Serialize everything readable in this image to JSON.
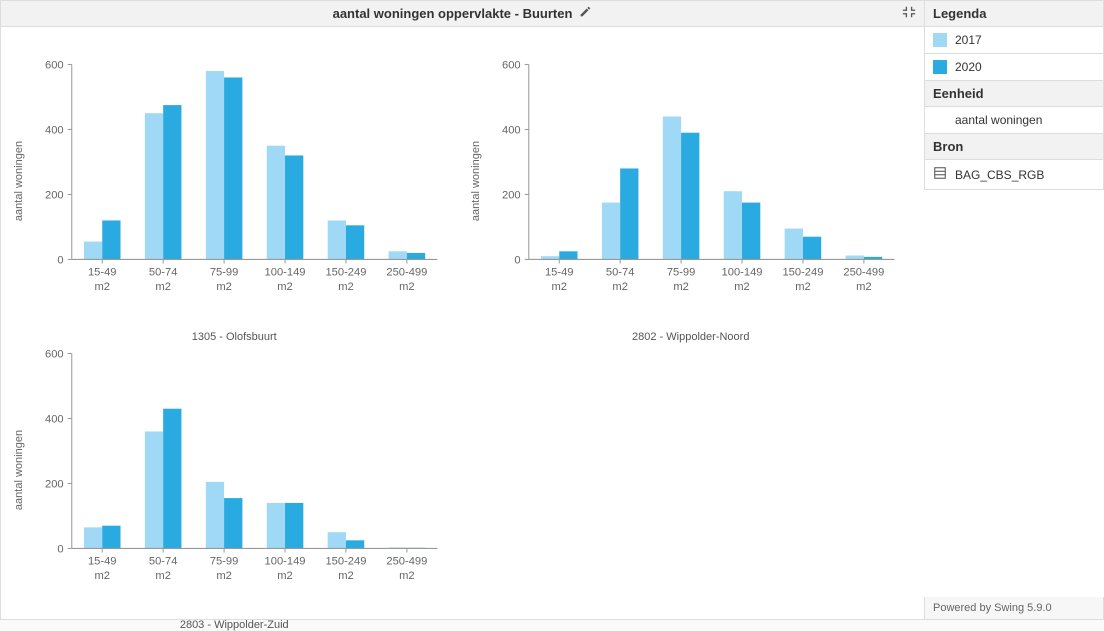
{
  "title": "aantal woningen oppervlakte - Buurten",
  "legend": {
    "header": "Legenda",
    "items": [
      {
        "label": "2017",
        "color": "#9fd9f6"
      },
      {
        "label": "2020",
        "color": "#29abe2"
      }
    ]
  },
  "unit": {
    "header": "Eenheid",
    "value": "aantal woningen"
  },
  "source": {
    "header": "Bron",
    "value": "BAG_CBS_RGB"
  },
  "powered": "Powered by Swing 5.9.0",
  "chart_style": {
    "type": "bar",
    "series_colors": [
      "#9fd9f6",
      "#29abe2"
    ],
    "axis_color": "#999999",
    "tick_color": "#999999",
    "text_color": "#666666",
    "bg_color": "#ffffff",
    "ylabel": "aantal woningen",
    "label_fontsize": 11,
    "tick_fontsize": 11,
    "ylim": [
      0,
      600
    ],
    "ytick_step": 200,
    "categories": [
      "15-49 m2",
      "50-74 m2",
      "75-99 m2",
      "100-149 m2",
      "150-249 m2",
      "250-499 m2"
    ],
    "bar_group_width": 0.6
  },
  "charts": [
    {
      "subtitle": "1305 - Olofsbuurt",
      "series": [
        [
          55,
          450,
          580,
          350,
          120,
          25
        ],
        [
          120,
          475,
          560,
          320,
          105,
          20
        ]
      ]
    },
    {
      "subtitle": "2802 - Wippolder-Noord",
      "series": [
        [
          10,
          175,
          440,
          210,
          95,
          12
        ],
        [
          25,
          280,
          390,
          175,
          70,
          8
        ]
      ]
    },
    {
      "subtitle": "2803 - Wippolder-Zuid",
      "series": [
        [
          65,
          360,
          205,
          140,
          50,
          3
        ],
        [
          70,
          430,
          155,
          140,
          25,
          2
        ]
      ]
    }
  ]
}
